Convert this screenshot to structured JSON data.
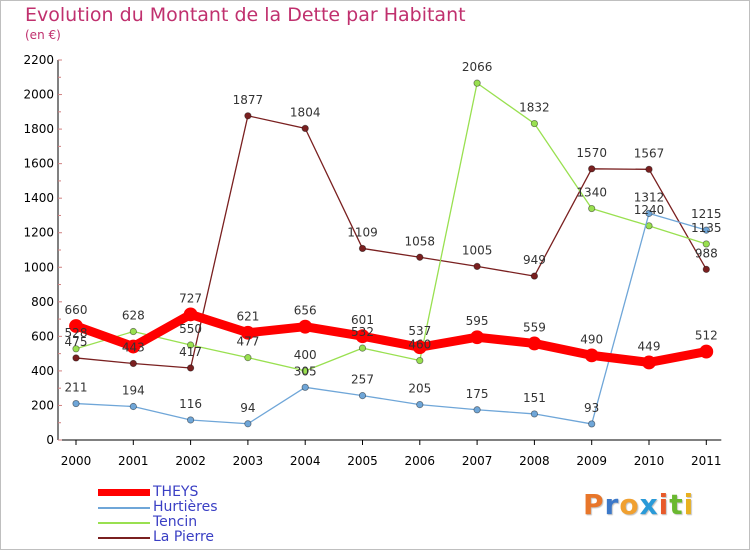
{
  "header": {
    "title": "Evolution du Montant de la Dette par Habitant",
    "unit": "(en €)"
  },
  "logo": {
    "letters": [
      "P",
      "r",
      "o",
      "x",
      "i",
      "t",
      "i"
    ],
    "colors": [
      "#e8762a",
      "#3c78c8",
      "#f0a030",
      "#2a9ad8",
      "#e85a2a",
      "#6ab830",
      "#e8b020"
    ]
  },
  "chart_data": {
    "type": "line",
    "title": "Evolution du Montant de la Dette par Habitant",
    "ylabel": "(en €)",
    "xlabel": "",
    "categories": [
      "2000",
      "2001",
      "2002",
      "2003",
      "2004",
      "2005",
      "2006",
      "2007",
      "2008",
      "2009",
      "2010",
      "2011"
    ],
    "ylim": [
      0,
      2200
    ],
    "yticks": [
      0,
      200,
      400,
      600,
      800,
      1000,
      1200,
      1400,
      1600,
      1800,
      2000,
      2200
    ],
    "grid": false,
    "legend_position": "bottom-left",
    "series": [
      {
        "name": "THEYS",
        "color": "#ff0000",
        "values": [
          660,
          541,
          727,
          621,
          656,
          601,
          537,
          595,
          559,
          490,
          449,
          512
        ],
        "labels": [
          "660",
          "",
          "727",
          "621",
          "656",
          "601",
          "537",
          "595",
          "559",
          "490",
          "449",
          "512"
        ]
      },
      {
        "name": "Hurtières",
        "color": "#6fa6d8",
        "values": [
          211,
          194,
          116,
          94,
          305,
          257,
          205,
          175,
          151,
          93,
          1312,
          1215
        ],
        "labels": [
          "211",
          "194",
          "116",
          "94",
          "305",
          "257",
          "205",
          "175",
          "151",
          "93",
          "1312",
          "1215"
        ]
      },
      {
        "name": "Tencin",
        "color": "#99e050",
        "values": [
          528,
          628,
          550,
          477,
          400,
          532,
          460,
          2066,
          1832,
          1340,
          1240,
          1135
        ],
        "labels": [
          "528",
          "628",
          "550",
          "477",
          "400",
          "532",
          "460",
          "2066",
          "1832",
          "1340",
          "1240",
          "1135"
        ]
      },
      {
        "name": "La Pierre",
        "color": "#7a2020",
        "values": [
          475,
          443,
          417,
          1877,
          1804,
          1109,
          1058,
          1005,
          949,
          1570,
          1567,
          988
        ],
        "labels": [
          "475",
          "443",
          "417",
          "1877",
          "1804",
          "1109",
          "1058",
          "1005",
          "949",
          "1570",
          "1567",
          "988"
        ]
      }
    ]
  },
  "legend": {
    "items": [
      {
        "label": "THEYS",
        "color": "#ff0000"
      },
      {
        "label": "Hurtières",
        "color": "#6fa6d8"
      },
      {
        "label": "Tencin",
        "color": "#99e050"
      },
      {
        "label": "La Pierre",
        "color": "#7a2020"
      }
    ]
  }
}
